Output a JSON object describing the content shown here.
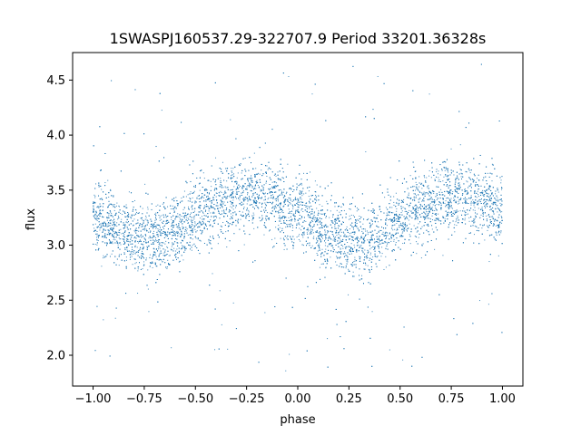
{
  "chart_data": {
    "type": "scatter",
    "title": "1SWASPJ160537.29-322707.9 Period 33201.36328s",
    "xlabel": "phase",
    "ylabel": "flux",
    "xlim": [
      -1.1,
      1.1
    ],
    "ylim": [
      1.72,
      4.75
    ],
    "grid": false,
    "legend": "none",
    "marker_color": "#1f77b4",
    "x_ticks": [
      -1.0,
      -0.75,
      -0.5,
      -0.25,
      0.0,
      0.25,
      0.5,
      0.75,
      1.0
    ],
    "x_tick_labels": [
      "−1.00",
      "−0.75",
      "−0.50",
      "−0.25",
      "0.00",
      "0.25",
      "0.50",
      "0.75",
      "1.00"
    ],
    "y_ticks": [
      2.0,
      2.5,
      3.0,
      3.5,
      4.0,
      4.5
    ],
    "y_tick_labels": [
      "2.0",
      "2.5",
      "3.0",
      "3.5",
      "4.0",
      "4.5"
    ],
    "series": [
      {
        "phase_range": [
          -1.0,
          1.0
        ],
        "points": [
          [
            -1.0,
            3.25
          ],
          [
            -0.95,
            3.21
          ],
          [
            -0.9,
            3.16
          ],
          [
            -0.85,
            3.12
          ],
          [
            -0.8,
            3.08
          ],
          [
            -0.75,
            3.07
          ],
          [
            -0.7,
            3.07
          ],
          [
            -0.65,
            3.09
          ],
          [
            -0.6,
            3.13
          ],
          [
            -0.55,
            3.18
          ],
          [
            -0.5,
            3.25
          ],
          [
            -0.45,
            3.31
          ],
          [
            -0.4,
            3.36
          ],
          [
            -0.35,
            3.4
          ],
          [
            -0.3,
            3.44
          ],
          [
            -0.25,
            3.46
          ],
          [
            -0.2,
            3.46
          ],
          [
            -0.15,
            3.44
          ],
          [
            -0.1,
            3.4
          ],
          [
            -0.05,
            3.34
          ],
          [
            0.0,
            3.28
          ],
          [
            0.05,
            3.21
          ],
          [
            0.1,
            3.15
          ],
          [
            0.15,
            3.1
          ],
          [
            0.2,
            3.07
          ],
          [
            0.25,
            3.05
          ],
          [
            0.3,
            3.05
          ],
          [
            0.35,
            3.07
          ],
          [
            0.4,
            3.1
          ],
          [
            0.45,
            3.16
          ],
          [
            0.5,
            3.23
          ],
          [
            0.55,
            3.29
          ],
          [
            0.6,
            3.34
          ],
          [
            0.65,
            3.38
          ],
          [
            0.7,
            3.42
          ],
          [
            0.75,
            3.44
          ],
          [
            0.8,
            3.45
          ],
          [
            0.85,
            3.43
          ],
          [
            0.9,
            3.4
          ],
          [
            0.95,
            3.35
          ],
          [
            1.0,
            3.3
          ]
        ],
        "scatter_sigma": 0.16,
        "outlier_range": [
          1.85,
          4.65
        ]
      }
    ]
  }
}
